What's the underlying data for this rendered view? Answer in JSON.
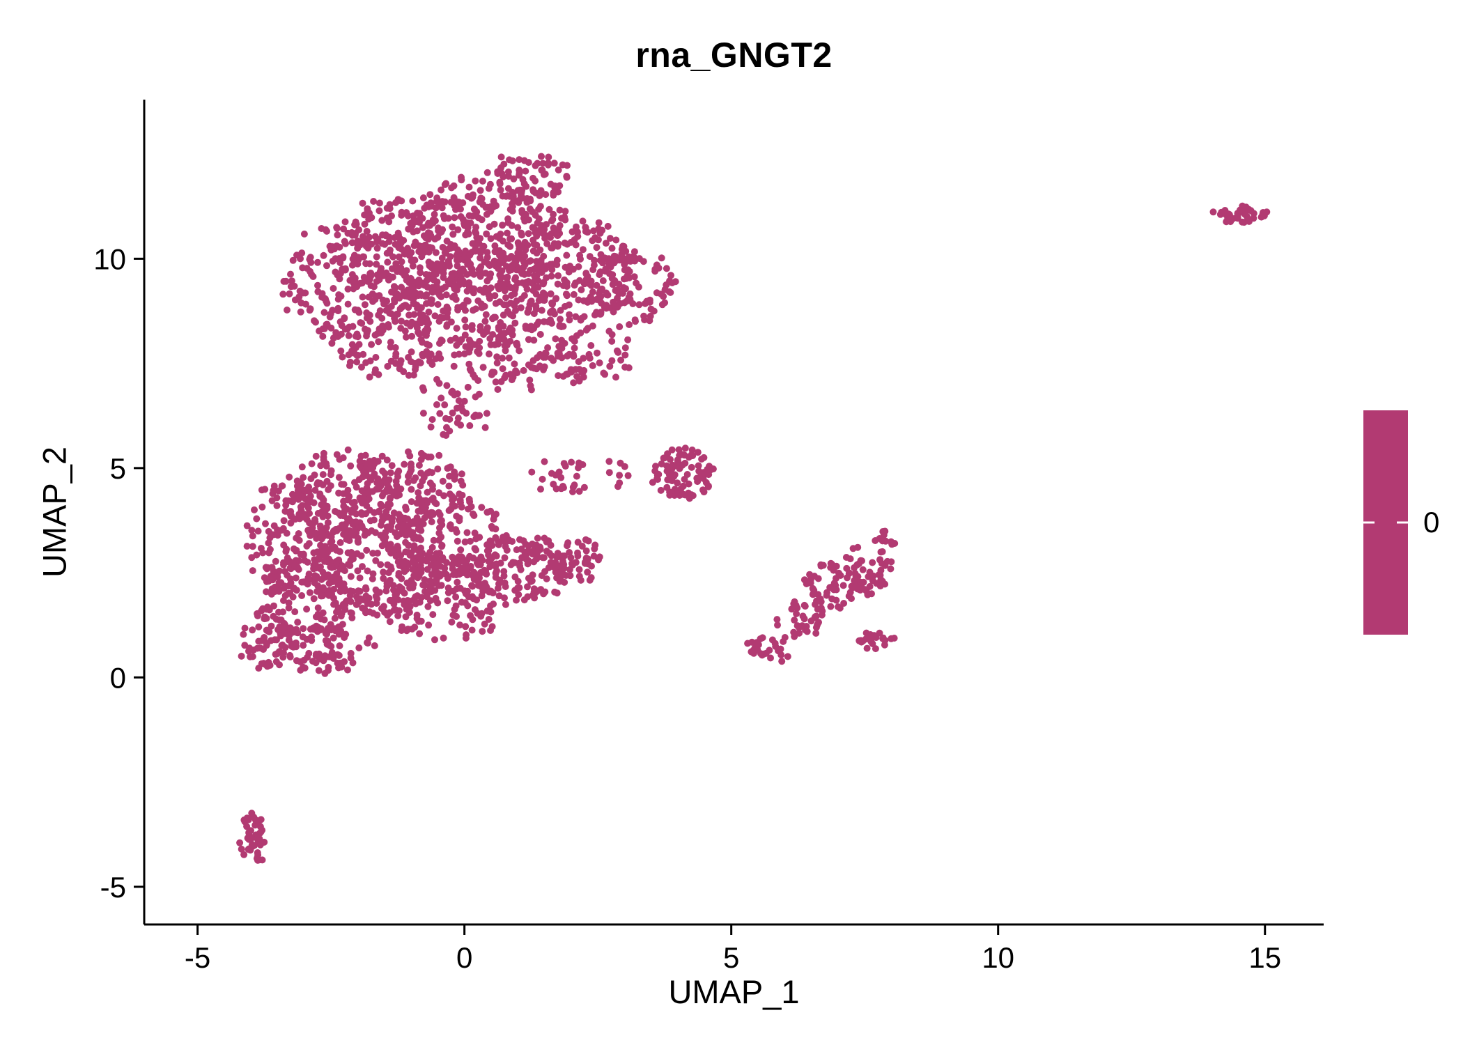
{
  "title": "rna_GNGT2",
  "chart_data": {
    "type": "scatter",
    "title": "rna_GNGT2",
    "xlabel": "UMAP_1",
    "ylabel": "UMAP_2",
    "xlim": [
      -6.0,
      16.1
    ],
    "ylim": [
      -5.9,
      13.8
    ],
    "xticks": [
      -5,
      0,
      5,
      10,
      15
    ],
    "yticks": [
      -5,
      0,
      5,
      10
    ],
    "grid": false,
    "background": "#FFFFFF",
    "axis_color": "#000000",
    "point_color": "#B23A72",
    "point_radius_px": 5,
    "legend": {
      "position": "right",
      "label": "0",
      "color": "#B23A72"
    },
    "point_clusters": [
      {
        "region": "upper-main",
        "cx": -2.3,
        "cy": 9.4,
        "rx": 1.1,
        "ry": 1.5,
        "n": 160
      },
      {
        "region": "upper-main",
        "cx": -1.0,
        "cy": 10.2,
        "rx": 1.4,
        "ry": 1.4,
        "n": 240
      },
      {
        "region": "upper-main",
        "cx": 0.5,
        "cy": 10.6,
        "rx": 1.5,
        "ry": 1.4,
        "n": 260
      },
      {
        "region": "upper-main",
        "cx": 0.2,
        "cy": 9.0,
        "rx": 1.6,
        "ry": 1.2,
        "n": 240
      },
      {
        "region": "upper-main",
        "cx": 1.9,
        "cy": 9.7,
        "rx": 1.3,
        "ry": 1.3,
        "n": 200
      },
      {
        "region": "upper-main-right-lobe",
        "cx": 3.1,
        "cy": 9.3,
        "rx": 0.85,
        "ry": 0.9,
        "n": 100
      },
      {
        "region": "upper-main-top-tip",
        "cx": 1.2,
        "cy": 11.9,
        "rx": 0.75,
        "ry": 0.6,
        "n": 70
      },
      {
        "region": "upper-main-lower",
        "cx": -1.4,
        "cy": 8.0,
        "rx": 1.1,
        "ry": 0.9,
        "n": 110
      },
      {
        "region": "upper-main-lower",
        "cx": 0.9,
        "cy": 7.6,
        "rx": 1.2,
        "ry": 0.8,
        "n": 90
      },
      {
        "region": "bridge-between-main-blobs",
        "cx": -0.2,
        "cy": 6.5,
        "rx": 0.7,
        "ry": 0.9,
        "n": 45
      },
      {
        "region": "upper-main-lower-right",
        "cx": 2.4,
        "cy": 7.7,
        "rx": 0.7,
        "ry": 0.7,
        "n": 50
      },
      {
        "region": "lower-main",
        "cx": -3.3,
        "cy": 3.4,
        "rx": 0.8,
        "ry": 1.4,
        "n": 130
      },
      {
        "region": "lower-main",
        "cx": -2.3,
        "cy": 4.3,
        "rx": 1.0,
        "ry": 1.1,
        "n": 160
      },
      {
        "region": "lower-main",
        "cx": -1.1,
        "cy": 4.5,
        "rx": 1.2,
        "ry": 0.9,
        "n": 150
      },
      {
        "region": "lower-main",
        "cx": -2.9,
        "cy": 1.9,
        "rx": 0.9,
        "ry": 1.2,
        "n": 150
      },
      {
        "region": "lower-main",
        "cx": -1.6,
        "cy": 2.7,
        "rx": 1.3,
        "ry": 1.2,
        "n": 210
      },
      {
        "region": "lower-main",
        "cx": -0.3,
        "cy": 3.3,
        "rx": 1.2,
        "ry": 1.0,
        "n": 170
      },
      {
        "region": "lower-main",
        "cx": -0.4,
        "cy": 1.9,
        "rx": 1.2,
        "ry": 1.0,
        "n": 150
      },
      {
        "region": "lower-main-right",
        "cx": 1.0,
        "cy": 2.6,
        "rx": 1.0,
        "ry": 0.8,
        "n": 130
      },
      {
        "region": "lower-main-bottom",
        "cx": -3.7,
        "cy": 0.9,
        "rx": 0.5,
        "ry": 0.7,
        "n": 60
      },
      {
        "region": "lower-main-bottom",
        "cx": -2.6,
        "cy": 0.7,
        "rx": 0.9,
        "ry": 0.55,
        "n": 80
      },
      {
        "region": "lower-main-right-tail",
        "cx": 2.0,
        "cy": 2.8,
        "rx": 0.6,
        "ry": 0.5,
        "n": 50
      },
      {
        "region": "lower-main-upper-right-sparse",
        "cx": 1.8,
        "cy": 4.8,
        "rx": 0.6,
        "ry": 0.4,
        "n": 25
      },
      {
        "region": "sparse-midline",
        "cx": 2.8,
        "cy": 4.9,
        "rx": 0.3,
        "ry": 0.3,
        "n": 8
      },
      {
        "region": "small-mid-cluster",
        "cx": 4.1,
        "cy": 4.9,
        "rx": 0.55,
        "ry": 0.65,
        "n": 90
      },
      {
        "region": "diagonal-cluster",
        "cx": 5.7,
        "cy": 0.7,
        "rx": 0.4,
        "ry": 0.3,
        "n": 30
      },
      {
        "region": "diagonal-cluster",
        "cx": 6.3,
        "cy": 1.4,
        "rx": 0.45,
        "ry": 0.45,
        "n": 35
      },
      {
        "region": "diagonal-cluster",
        "cx": 6.9,
        "cy": 2.2,
        "rx": 0.5,
        "ry": 0.55,
        "n": 55
      },
      {
        "region": "diagonal-cluster",
        "cx": 7.5,
        "cy": 2.6,
        "rx": 0.45,
        "ry": 0.6,
        "n": 50
      },
      {
        "region": "diagonal-cluster-arm",
        "cx": 7.7,
        "cy": 0.85,
        "rx": 0.4,
        "ry": 0.25,
        "n": 22
      },
      {
        "region": "diagonal-cluster-top",
        "cx": 7.9,
        "cy": 3.2,
        "rx": 0.25,
        "ry": 0.4,
        "n": 12
      },
      {
        "region": "far-right-island",
        "cx": 14.55,
        "cy": 11.05,
        "rx": 0.5,
        "ry": 0.18,
        "n": 42
      },
      {
        "region": "bottom-left-island",
        "cx": -3.95,
        "cy": -3.9,
        "rx": 0.18,
        "ry": 0.65,
        "n": 45
      }
    ]
  }
}
